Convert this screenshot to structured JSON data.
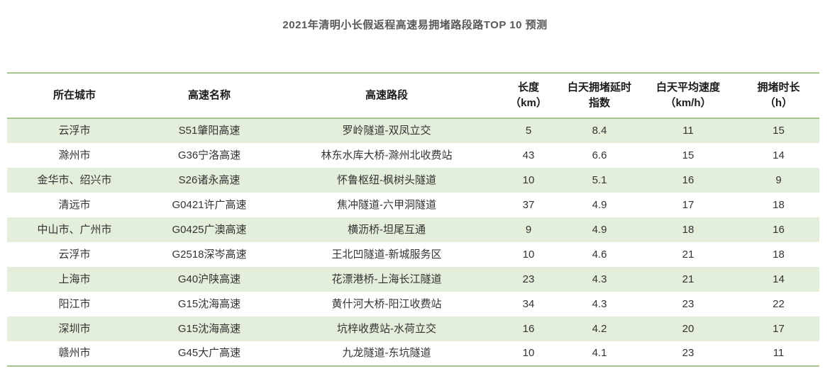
{
  "title": "2021年清明小长假返程高速易拥堵路段路TOP 10 预测",
  "colors": {
    "accent_line": "#a2c48c",
    "row_stripe": "#e3efda",
    "title_text": "#595959",
    "header_text": "#1a1a1a",
    "cell_text": "#333333"
  },
  "chart_data": {
    "type": "table",
    "title": "2021年清明小长假返程高速易拥堵路段路TOP 10 预测",
    "columns": [
      "所在城市",
      "高速名称",
      "高速路段",
      "长度\n（km）",
      "白天拥堵延时\n指数",
      "白天平均速度\n（km/h）",
      "拥堵时长\n（h）"
    ],
    "rows": [
      [
        "云浮市",
        "S51肇阳高速",
        "罗岭隧道-双凤立交",
        "5",
        "8.4",
        "11",
        "15"
      ],
      [
        "滁州市",
        "G36宁洛高速",
        "林东水库大桥-滁州北收费站",
        "43",
        "6.6",
        "15",
        "14"
      ],
      [
        "金华市、绍兴市",
        "S26诸永高速",
        "怀鲁枢纽-枫树头隧道",
        "10",
        "5.1",
        "16",
        "9"
      ],
      [
        "清远市",
        "G0421许广高速",
        "焦冲隧道-六甲洞隧道",
        "37",
        "4.9",
        "17",
        "18"
      ],
      [
        "中山市、广州市",
        "G0425广澳高速",
        "横沥桥-坦尾互通",
        "9",
        "4.9",
        "18",
        "16"
      ],
      [
        "云浮市",
        "G2518深岑高速",
        "王北凹隧道-新城服务区",
        "10",
        "4.6",
        "21",
        "18"
      ],
      [
        "上海市",
        "G40沪陕高速",
        "花漂港桥-上海长江隧道",
        "23",
        "4.3",
        "21",
        "14"
      ],
      [
        "阳江市",
        "G15沈海高速",
        "黄什河大桥-阳江收费站",
        "34",
        "4.3",
        "23",
        "22"
      ],
      [
        "深圳市",
        "G15沈海高速",
        "坑梓收费站-水荷立交",
        "16",
        "4.2",
        "20",
        "17"
      ],
      [
        "赣州市",
        "G45大广高速",
        "九龙隧道-东坑隧道",
        "10",
        "4.1",
        "23",
        "11"
      ]
    ],
    "layout": {
      "striped": true,
      "stripe_pattern": "odd-rows-green",
      "borders": "horizontal-accent-lines-top-header-bottom"
    }
  }
}
